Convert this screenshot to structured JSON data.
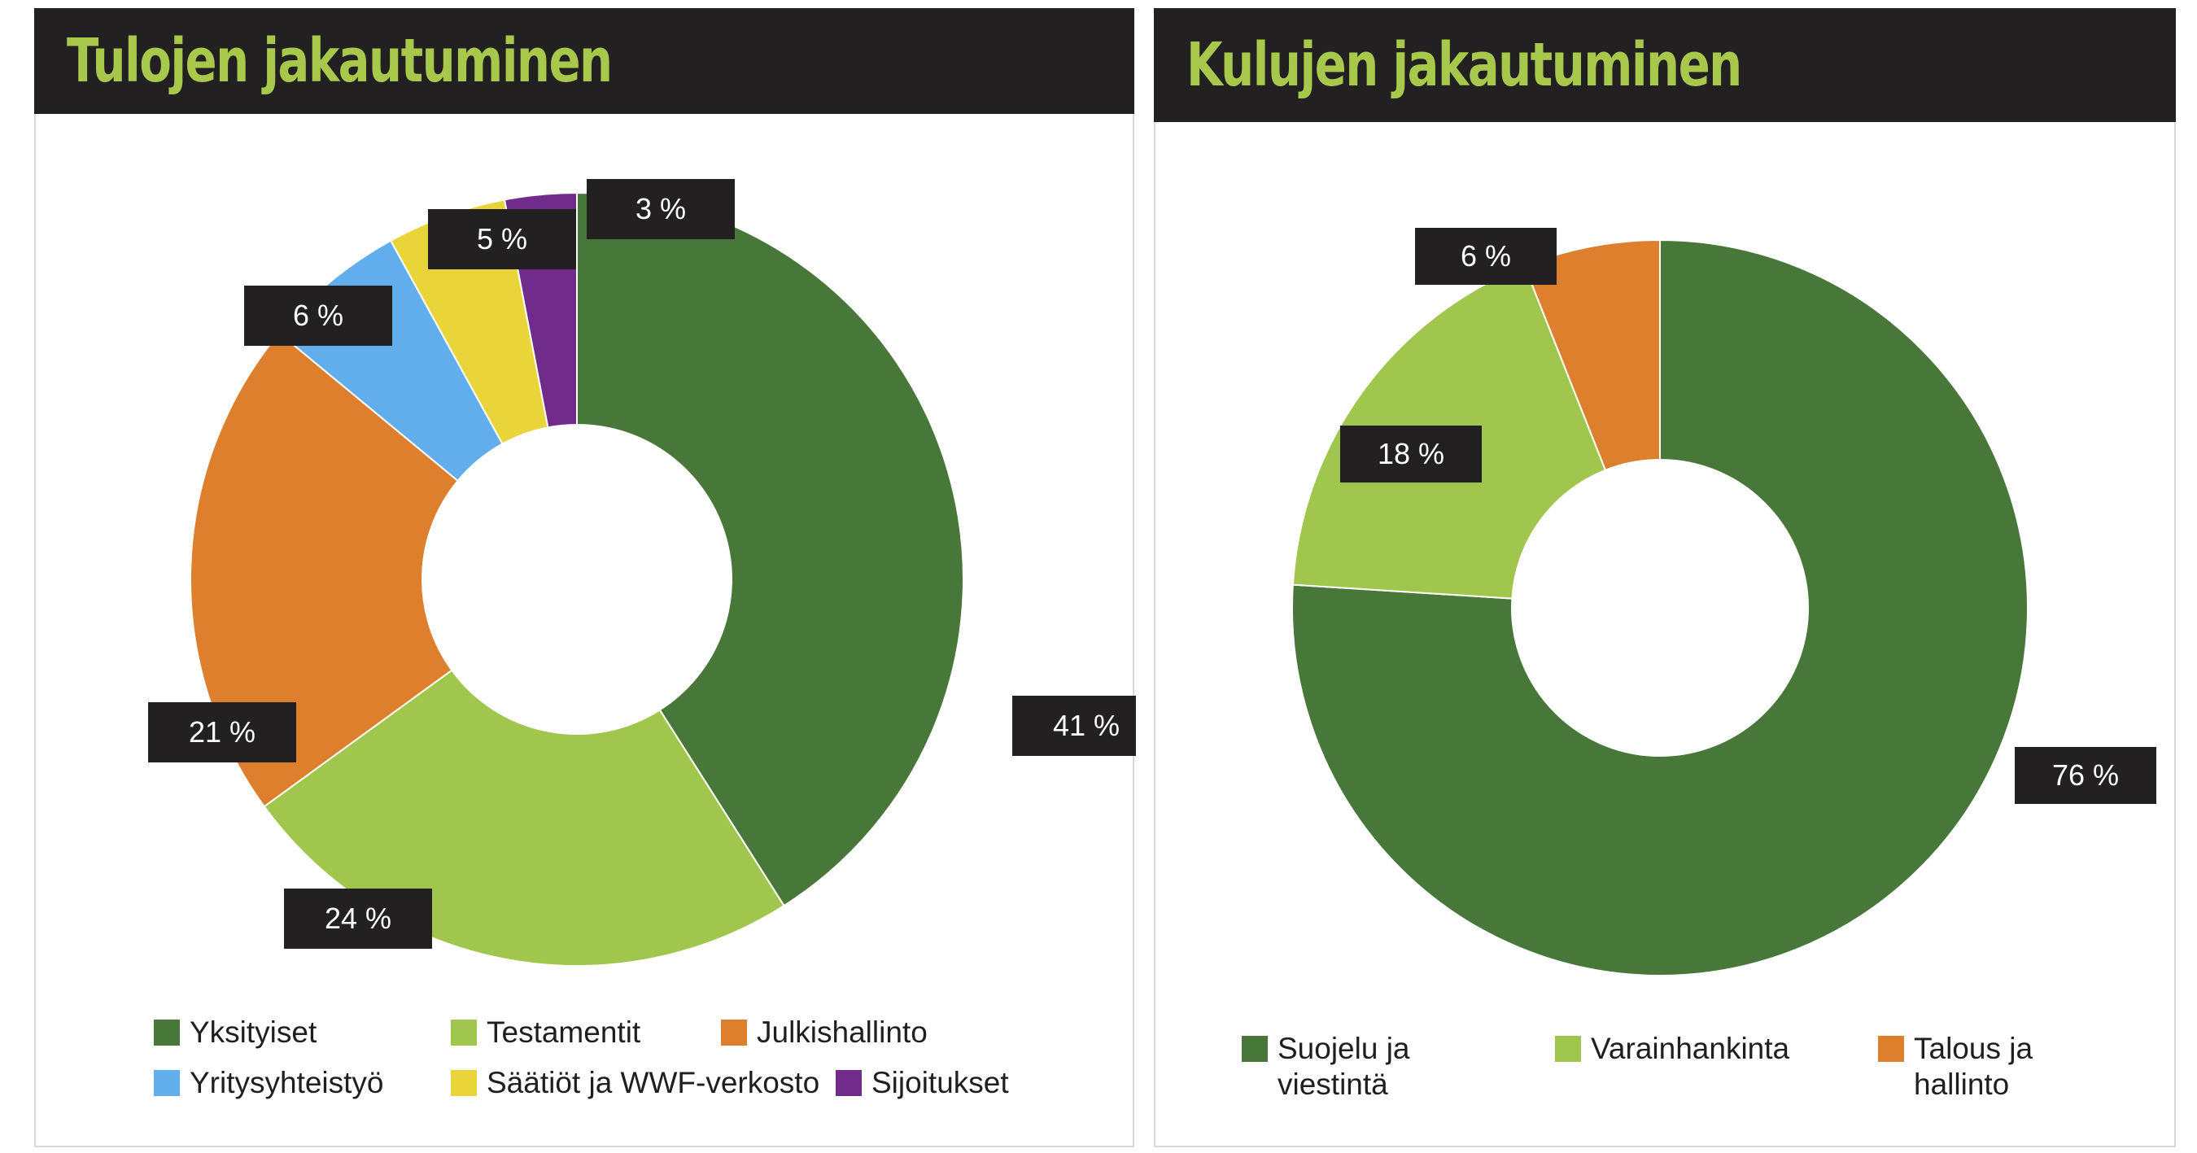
{
  "left": {
    "title": "Tulojen jakautuminen",
    "legend": [
      {
        "label": "Yksityiset",
        "color": "#47783a"
      },
      {
        "label": "Testamentit",
        "color": "#a1c64d"
      },
      {
        "label": "Julkishallinto",
        "color": "#dd7f2d"
      },
      {
        "label": "Yritysyhteistyö",
        "color": "#62aeed"
      },
      {
        "label": "Säätiöt ja WWF-verkosto",
        "color": "#e9d43a"
      },
      {
        "label": "Sijoitukset",
        "color": "#712c8b"
      }
    ]
  },
  "right": {
    "title": "Kulujen jakautuminen",
    "legend": [
      {
        "label": "Suojelu ja viestintä",
        "color": "#47783a"
      },
      {
        "label": "Varainhankinta",
        "color": "#a1c64d"
      },
      {
        "label": "Talous ja hallinto",
        "color": "#dd7f2d"
      }
    ]
  },
  "chart_data": [
    {
      "type": "pie",
      "title": "Tulojen jakautuminen",
      "categories": [
        "Yksityiset",
        "Testamentit",
        "Julkishallinto",
        "Yritysyhteistyö",
        "Säätiöt ja WWF-verkosto",
        "Sijoitukset"
      ],
      "values": [
        41,
        24,
        21,
        6,
        5,
        3
      ],
      "labels": [
        "41 %",
        "24 %",
        "21 %",
        "6 %",
        "5 %",
        "3 %"
      ],
      "colors": [
        "#47783a",
        "#a1c64d",
        "#dd7f2d",
        "#62aeed",
        "#e9d43a",
        "#712c8b"
      ],
      "donut": true,
      "legend_position": "bottom"
    },
    {
      "type": "pie",
      "title": "Kulujen jakautuminen",
      "categories": [
        "Suojelu ja viestintä",
        "Varainhankinta",
        "Talous ja hallinto"
      ],
      "values": [
        76,
        18,
        6
      ],
      "labels": [
        "76 %",
        "18 %",
        "6 %"
      ],
      "colors": [
        "#47783a",
        "#a1c64d",
        "#dd7f2d"
      ],
      "donut": true,
      "legend_position": "bottom"
    }
  ]
}
